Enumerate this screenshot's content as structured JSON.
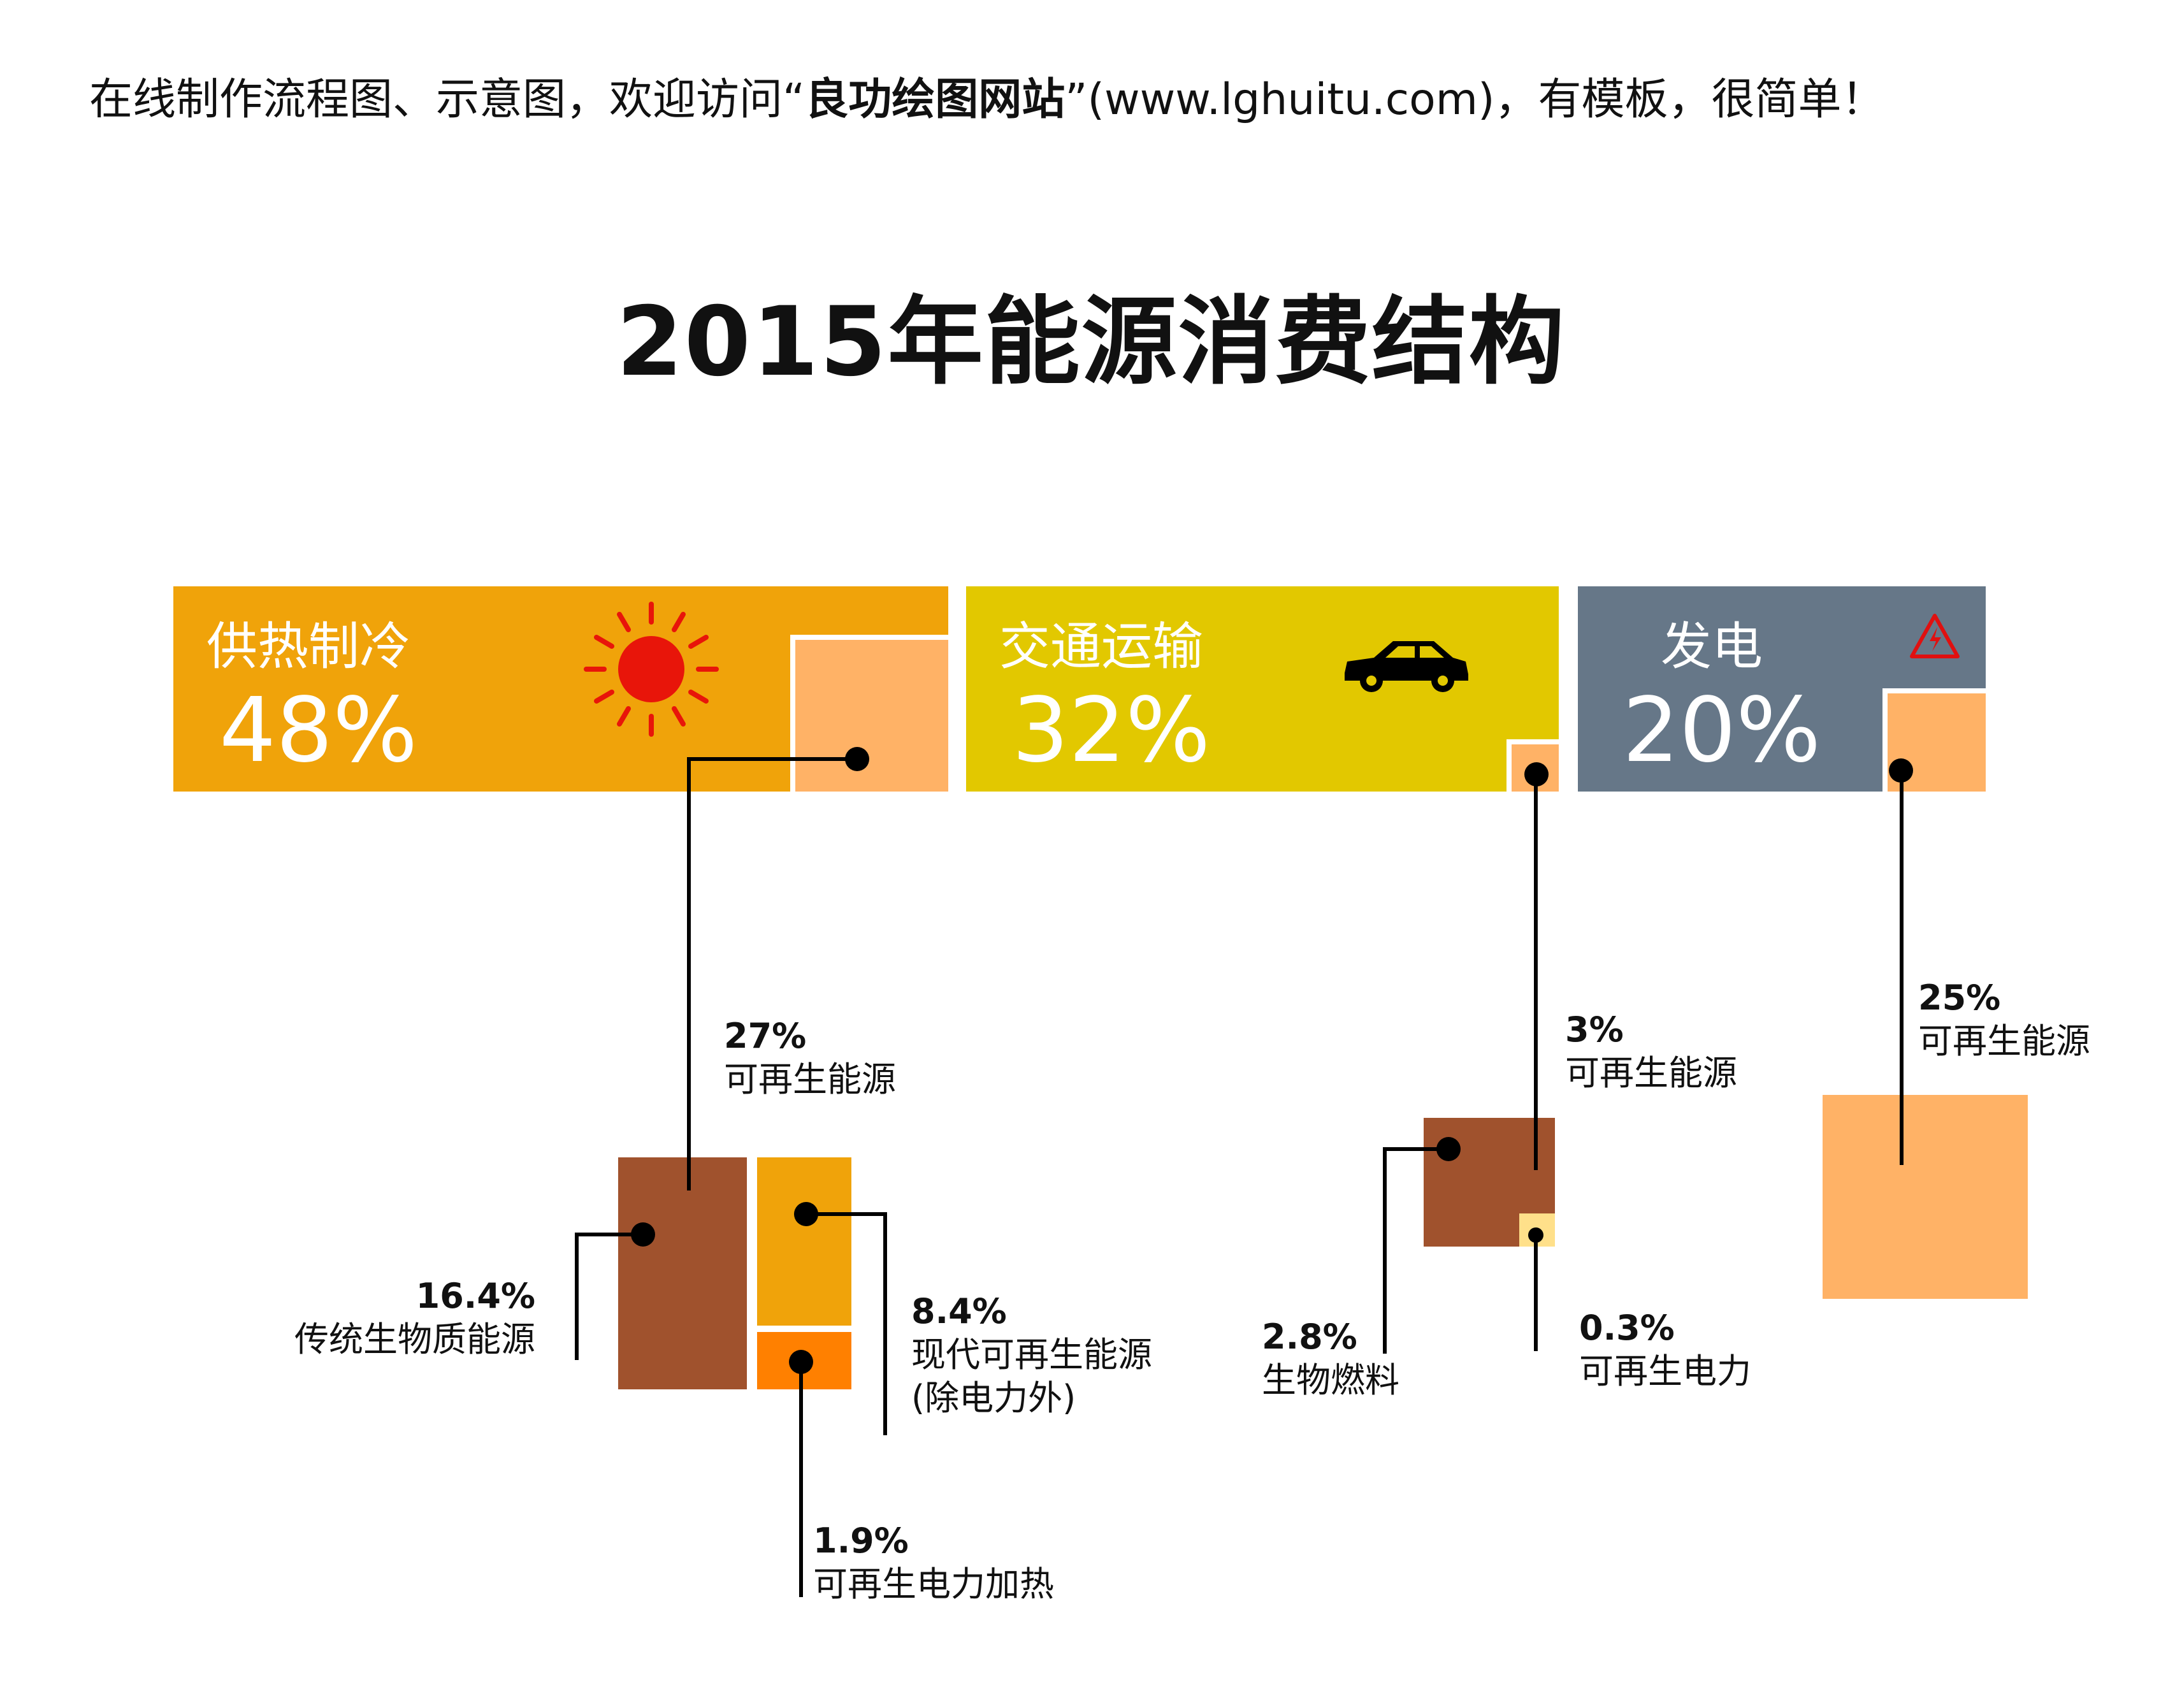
{
  "banner": {
    "prefix": "在线制作流程图、示意图，欢迎访问“",
    "brand": "良功绘图网站",
    "suffix": "”(www.lghuitu.com)，有模板，很简单！"
  },
  "title": "2015年能源消费结构",
  "colors": {
    "heating": "#f0a30a",
    "transport": "#e2c800",
    "power": "#667788",
    "renewable": "#ffb266",
    "biomass": "#a0522d",
    "modern": "#f0a30a",
    "electric_heat": "#ff8000",
    "renew_power": "#ffe08a"
  },
  "panels": {
    "heating": {
      "label": "供热制冷",
      "percent": "48%",
      "icon": "sun-icon"
    },
    "transport": {
      "label": "交通运输",
      "percent": "32%",
      "icon": "car-icon"
    },
    "power": {
      "label": "发电",
      "percent": "20%",
      "icon": "high-voltage-warning-icon"
    }
  },
  "callouts": {
    "heat_renewable": {
      "percent": "27%",
      "name": "可再生能源"
    },
    "traditional_biomass": {
      "percent": "16.4%",
      "name": "传统生物质能源"
    },
    "modern_renewable": {
      "percent": "8.4%",
      "name": "现代可再生能源",
      "name2": "(除电力外)"
    },
    "electric_heating": {
      "percent": "1.9%",
      "name": "可再生电力加热"
    },
    "transport_renewable": {
      "percent": "3%",
      "name": "可再生能源"
    },
    "biofuel": {
      "percent": "2.8%",
      "name": "生物燃料"
    },
    "renewable_power": {
      "percent": "0.3%",
      "name": "可再生电力"
    },
    "power_renewable": {
      "percent": "25%",
      "name": "可再生能源"
    }
  }
}
